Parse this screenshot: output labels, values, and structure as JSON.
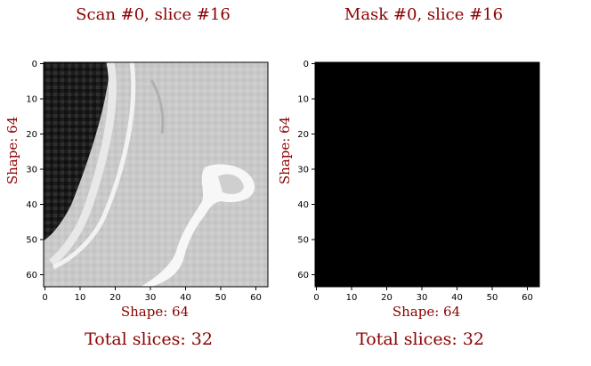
{
  "panels": [
    {
      "title": "Scan #0, slice #16",
      "xlabel": "Shape: 64",
      "ylabel": "Shape: 64",
      "footer": "Total slices: 32",
      "xticks": [
        "0",
        "10",
        "20",
        "30",
        "40",
        "50",
        "60"
      ],
      "yticks": [
        "0",
        "10",
        "20",
        "30",
        "40",
        "50",
        "60"
      ]
    },
    {
      "title": "Mask #0, slice #16",
      "xlabel": "Shape: 64",
      "ylabel": "Shape: 64",
      "footer": "Total slices: 32",
      "xticks": [
        "0",
        "10",
        "20",
        "30",
        "40",
        "50",
        "60"
      ],
      "yticks": [
        "0",
        "10",
        "20",
        "30",
        "40",
        "50",
        "60"
      ]
    }
  ],
  "colors": {
    "label": "#8b0000",
    "mask_fill": "#000000"
  }
}
